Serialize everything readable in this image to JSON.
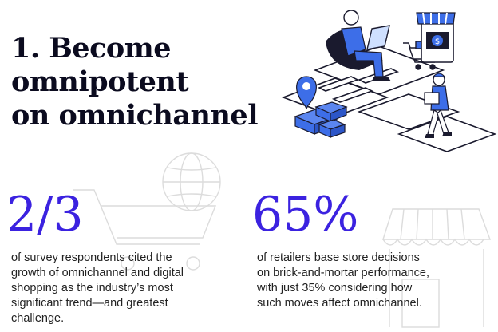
{
  "heading": {
    "line1": "1. Become omnipotent",
    "line2": "on omnichannel"
  },
  "stats": [
    {
      "value": "2/3",
      "description_lines": [
        "of survey respondents cited the",
        "growth of omnichannel and digital",
        "shopping as the industry’s most",
        "significant trend—and greatest",
        "challenge."
      ]
    },
    {
      "value": "65%",
      "description_lines": [
        "of retailers base store decisions",
        "on brick-and-mortar performance,",
        "with just 35% considering how",
        "such moves affect omnichannel."
      ]
    }
  ],
  "colors": {
    "accent": "#3b22e0",
    "heading": "#0b0b1f",
    "illustration_blue": "#3d6ee8",
    "illustration_dark": "#1a1a2e"
  },
  "icons": [
    "cart-icon",
    "globe-icon",
    "storefront-icon",
    "map-pin-icon"
  ]
}
